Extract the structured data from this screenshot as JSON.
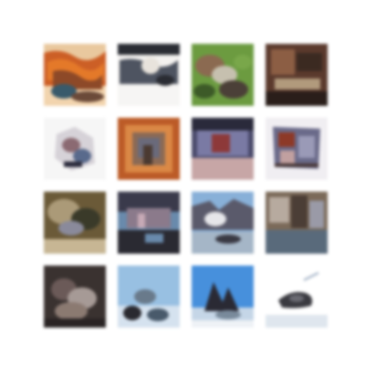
{
  "grid": {
    "rows": 4,
    "cols": 4,
    "tiles": [
      {
        "palette": [
          "#c8602a",
          "#e07a2e",
          "#8a4a2a",
          "#3a5a6a",
          "#f1d4b0"
        ]
      },
      {
        "palette": [
          "#f3f1ef",
          "#4e5460",
          "#c9ccd0",
          "#2a2c33",
          "#e8e3dc"
        ]
      },
      {
        "palette": [
          "#6d9a44",
          "#8a6a52",
          "#3e5a2a",
          "#c6c0b0",
          "#4b4038"
        ]
      },
      {
        "palette": [
          "#5a3a2e",
          "#8a5e46",
          "#3a2a22",
          "#b09a7e",
          "#2a1e1a"
        ]
      },
      {
        "palette": [
          "#f6f6f6",
          "#5a6a8a",
          "#8a6a72",
          "#2a2a3a",
          "#d6d2d8"
        ]
      },
      {
        "palette": [
          "#b85c2a",
          "#8a6a56",
          "#d88a4a",
          "#6a6a7a",
          "#4a3a32"
        ]
      },
      {
        "palette": [
          "#4a4a6a",
          "#7a7aa2",
          "#8a3a3a",
          "#c6a6a6",
          "#2a2a3a"
        ]
      },
      {
        "palette": [
          "#6a6a88",
          "#8a3a2a",
          "#c0a0a0",
          "#4a3a3a",
          "#9a9ab6"
        ]
      },
      {
        "palette": [
          "#6a5a3a",
          "#aa9a7a",
          "#3a3a2a",
          "#8a8a9a",
          "#c6b696"
        ]
      },
      {
        "palette": [
          "#3a3a4a",
          "#8a7a8a",
          "#6a8aaa",
          "#2a2a32",
          "#c6aab6"
        ]
      },
      {
        "palette": [
          "#8ab0d6",
          "#5a5a6a",
          "#e6e6ea",
          "#3a3a44",
          "#a6b6c6"
        ]
      },
      {
        "palette": [
          "#7a6a5a",
          "#b6aaa0",
          "#4a3e36",
          "#9a9aa6",
          "#5a6a7a"
        ]
      },
      {
        "palette": [
          "#3a3230",
          "#6a5a58",
          "#a69a96",
          "#2a2424",
          "#8a7a72"
        ]
      },
      {
        "palette": [
          "#9ac0e0",
          "#6a7a8a",
          "#2a2a30",
          "#d6e2ee",
          "#4a5a6a"
        ]
      },
      {
        "palette": [
          "#4a90d8",
          "#2a2a34",
          "#c6d6e6",
          "#7a8a9a",
          "#eef2f6"
        ]
      },
      {
        "palette": [
          "#ffffff",
          "#3a3a40",
          "#9aaac0",
          "#6a6a72",
          "#dfe6ee"
        ]
      }
    ]
  }
}
